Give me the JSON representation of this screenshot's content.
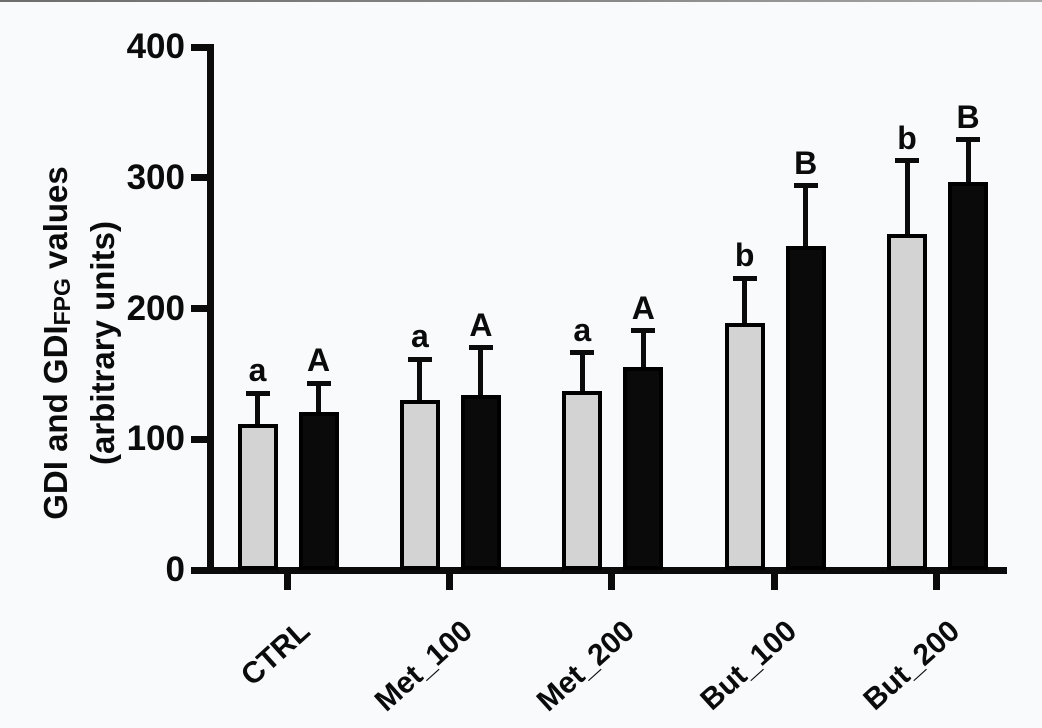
{
  "figure": {
    "background": "#f9fafb",
    "top_edge_color": "#6d6d6d"
  },
  "chart_data": {
    "type": "bar",
    "title": "",
    "ylabel": "GDI and GDI_FPG values (arbitrary units)",
    "ylabel_rich": {
      "line1_pre": "GDI and GDI",
      "line1_sub": "FPG",
      "line1_post": " values",
      "line2": "(arbitrary units)"
    },
    "xlabel": "",
    "categories": [
      "CTRL",
      "Met_100",
      "Met_200",
      "But_100",
      "But_200"
    ],
    "series": [
      {
        "name": "GDI",
        "fill": "#d3d3d3",
        "values": [
          112,
          130,
          137,
          189,
          257
        ],
        "errors_up": [
          23,
          31,
          29,
          34,
          56
        ],
        "sig_letters": [
          "a",
          "a",
          "a",
          "b",
          "b"
        ]
      },
      {
        "name": "GDI_FPG",
        "fill": "#0a0a0a",
        "values": [
          121,
          134,
          155,
          248,
          297
        ],
        "errors_up": [
          22,
          36,
          28,
          46,
          32
        ],
        "sig_letters": [
          "A",
          "A",
          "A",
          "B",
          "B"
        ]
      }
    ],
    "ylim": [
      0,
      400
    ],
    "yticks": [
      0,
      100,
      200,
      300,
      400
    ],
    "grid": false,
    "legend": "none",
    "error_bar_style": "upper-only-with-cap",
    "outline_color": "#000000",
    "axis_color": "#0b0b0b"
  }
}
